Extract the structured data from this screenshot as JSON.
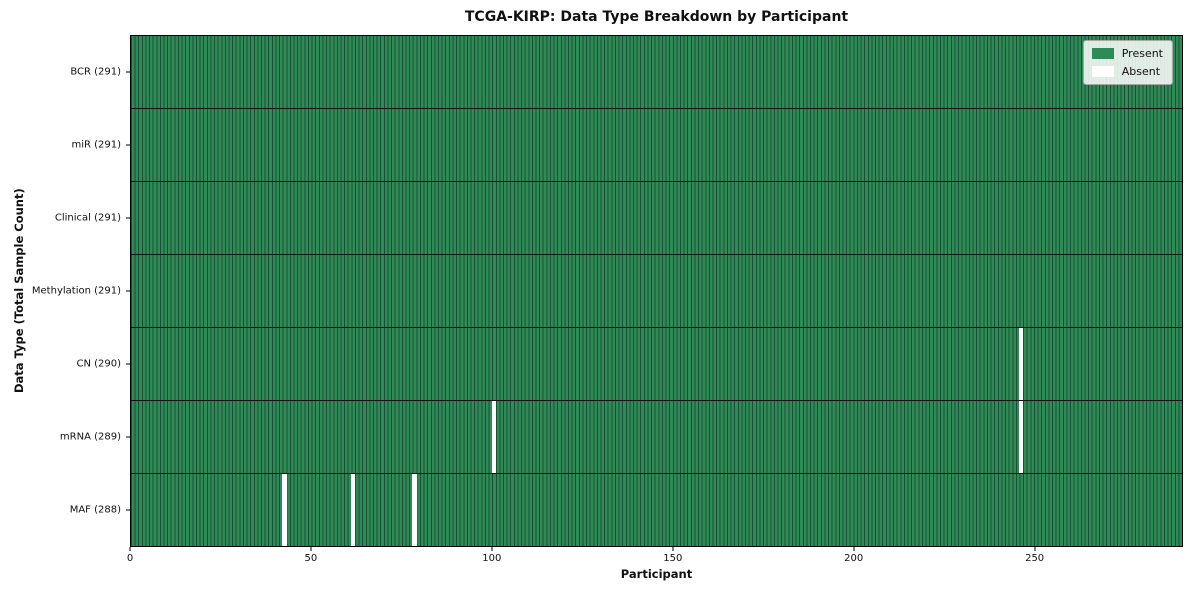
{
  "chart_data": {
    "type": "heatmap",
    "title": "TCGA-KIRP: Data Type Breakdown by Participant",
    "xlabel": "Participant",
    "ylabel": "Data Type (Total Sample Count)",
    "x_range": [
      0,
      291
    ],
    "x_ticks": [
      0,
      50,
      100,
      150,
      200,
      250
    ],
    "n_participants": 291,
    "grid": false,
    "legend_position": "upper right",
    "rows": [
      {
        "data_type": "BCR",
        "label": "BCR (291)",
        "total_samples": 291,
        "absent_participants": []
      },
      {
        "data_type": "miR",
        "label": "miR (291)",
        "total_samples": 291,
        "absent_participants": []
      },
      {
        "data_type": "Clinical",
        "label": "Clinical (291)",
        "total_samples": 291,
        "absent_participants": []
      },
      {
        "data_type": "Methylation",
        "label": "Methylation (291)",
        "total_samples": 291,
        "absent_participants": []
      },
      {
        "data_type": "CN",
        "label": "CN (290)",
        "total_samples": 290,
        "absent_participants": [
          246
        ]
      },
      {
        "data_type": "mRNA",
        "label": "mRNA (289)",
        "total_samples": 289,
        "absent_participants": [
          100,
          246
        ]
      },
      {
        "data_type": "MAF",
        "label": "MAF (288)",
        "total_samples": 288,
        "absent_participants": [
          42,
          61,
          78
        ]
      }
    ],
    "legend": [
      {
        "label": "Present",
        "color": "#2e8b57"
      },
      {
        "label": "Absent",
        "color": "#ffffff"
      }
    ],
    "colors": {
      "present": "#2e8b57",
      "absent": "#ffffff",
      "cell_edge": "#1b4f33",
      "row_separator": "#141414",
      "spine": "#000000",
      "legend_border": "#a6a6a6"
    }
  }
}
